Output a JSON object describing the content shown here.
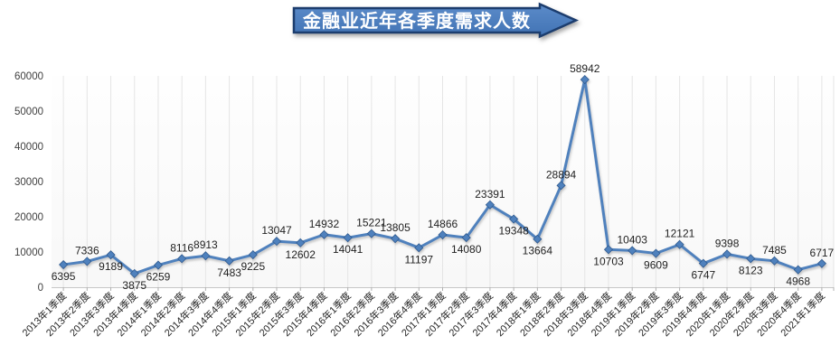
{
  "title_banner": {
    "text": "金融业近年各季度需求人数",
    "fill_top": "#5b8bc9",
    "fill_bottom": "#4173b4",
    "border_color": "#1c3d6e",
    "text_color": "#ffffff"
  },
  "chart_data": {
    "type": "line",
    "title": "金融业近年各季度需求人数",
    "categories": [
      "2013年1季度",
      "2013年2季度",
      "2013年3季度",
      "2013年4季度",
      "2014年1季度",
      "2014年2季度",
      "2014年3季度",
      "2014年4季度",
      "2015年1季度",
      "2015年2季度",
      "2015年3季度",
      "2015年4季度",
      "2016年1季度",
      "2016年2季度",
      "2016年3季度",
      "2016年4季度",
      "2017年1季度",
      "2017年2季度",
      "2017年3季度",
      "2017年4季度",
      "2018年1季度",
      "2018年2季度",
      "2018年3季度",
      "2018年4季度",
      "2019年1季度",
      "2019年2季度",
      "2019年3季度",
      "2019年4季度",
      "2020年1季度",
      "2020年2季度",
      "2020年3季度",
      "2020年4季度",
      "2021年1季度"
    ],
    "values": [
      6395,
      7336,
      9189,
      3875,
      6259,
      8116,
      8913,
      7483,
      9225,
      13047,
      12602,
      14932,
      14041,
      15221,
      13805,
      11197,
      14866,
      14080,
      23391,
      19348,
      13664,
      28894,
      58942,
      10703,
      10403,
      9609,
      12121,
      6747,
      9398,
      8123,
      7485,
      4968,
      6717
    ],
    "data_label_positions": [
      "below",
      "above",
      "below",
      "below",
      "below",
      "above",
      "above",
      "below",
      "below",
      "above",
      "below",
      "above",
      "below",
      "above",
      "above",
      "below",
      "above",
      "below",
      "above",
      "below",
      "below",
      "above",
      "above",
      "below",
      "above",
      "below",
      "above",
      "below",
      "above",
      "below",
      "above",
      "below",
      "above"
    ],
    "xlabel": "",
    "ylabel": "",
    "ylim": [
      0,
      60000
    ],
    "yticks": [
      0,
      10000,
      20000,
      30000,
      40000,
      50000,
      60000
    ],
    "legend": "none",
    "grid": "vertical",
    "marker": "diamond",
    "line_color": "#4f81bd",
    "marker_stroke_color": "#2f5a8f",
    "data_label_color": "#1f1f1f",
    "axis_label_color": "#262626",
    "ytick_label_color": "#404040",
    "gridline_color": "#e5e5e5",
    "axis_line_color": "#c6c6c6",
    "tick_mark_color": "#b0b0b0",
    "plot_bg_top": "#fefefe",
    "plot_bg_bottom": "#f8f8f8"
  }
}
